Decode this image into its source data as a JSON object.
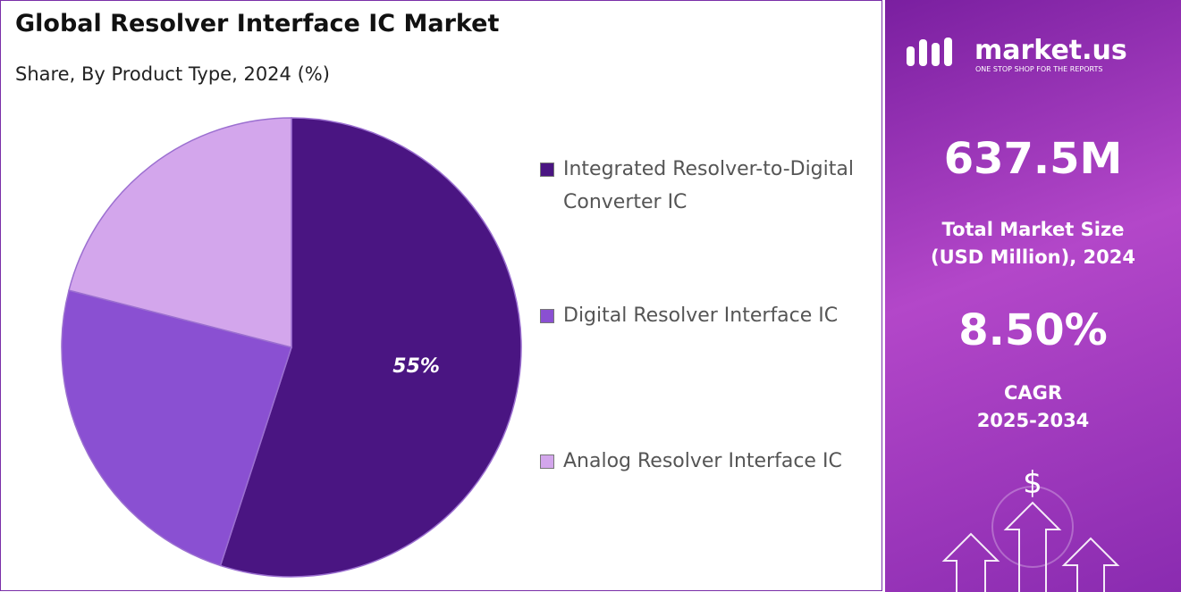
{
  "chart_data": {
    "type": "pie",
    "title": "Global Resolver Interface IC Market",
    "subtitle": "Share, By Product Type, 2024 (%)",
    "categories": [
      "Integrated Resolver-to-Digital Converter IC",
      "Digital Resolver Interface IC",
      "Analog Resolver Interface IC"
    ],
    "values": [
      55,
      24,
      21
    ],
    "value_labels": [
      "55%",
      null,
      null
    ],
    "colors": [
      "#4a1582",
      "#8a50d2",
      "#d3a6ec"
    ]
  },
  "panel": {
    "brand": "market.us",
    "tagline": "ONE STOP SHOP FOR THE REPORTS",
    "market_size": "637.5M",
    "market_size_label": [
      "Total Market Size",
      "(USD Million), 2024"
    ],
    "cagr": "8.50%",
    "cagr_label": [
      "CAGR",
      "2025-2034"
    ],
    "icon": "$"
  }
}
